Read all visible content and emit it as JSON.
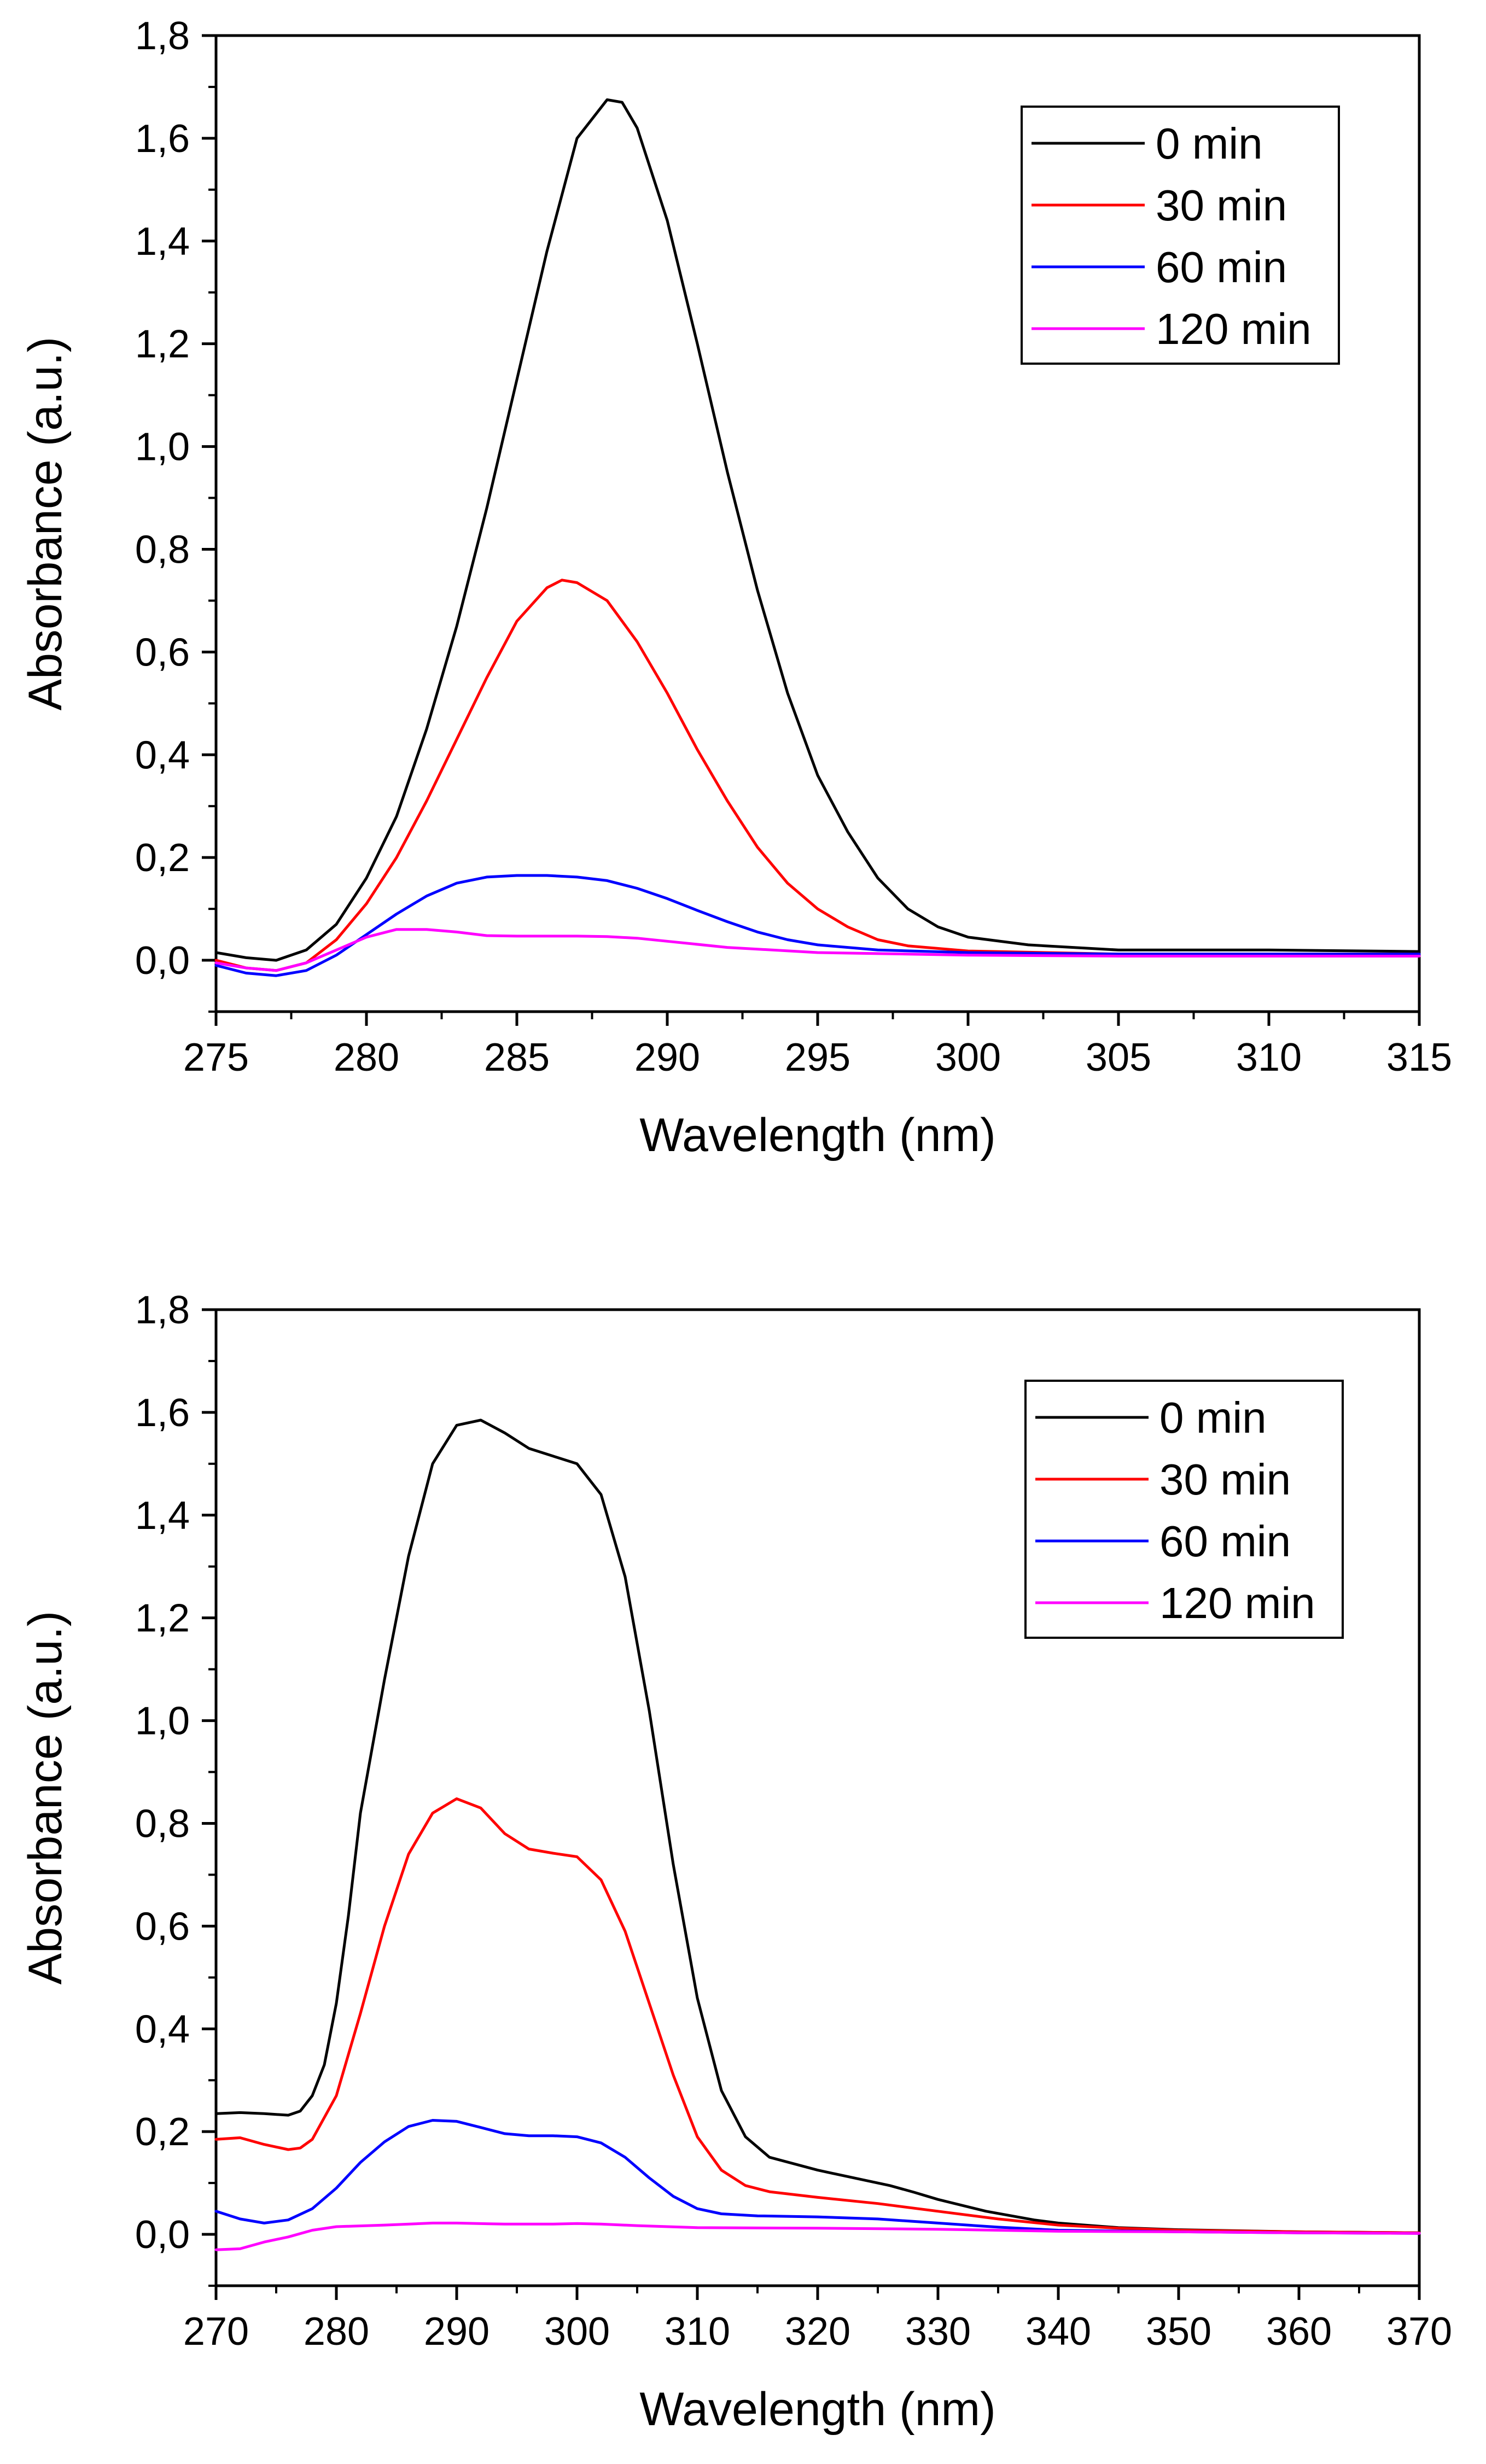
{
  "chart_data": [
    {
      "type": "line",
      "xlabel": "Wavelength (nm)",
      "ylabel": "Absorbance (a.u.)",
      "xlim": [
        275,
        315
      ],
      "ylim": [
        -0.1,
        1.8
      ],
      "grid": false,
      "legend_position": "top-right",
      "x_ticks": [
        275,
        280,
        285,
        290,
        295,
        300,
        305,
        310,
        315
      ],
      "x_tick_labels": [
        "275",
        "280",
        "285",
        "290",
        "295",
        "300",
        "305",
        "310",
        "315"
      ],
      "y_ticks": [
        0.0,
        0.2,
        0.4,
        0.6,
        0.8,
        1.0,
        1.2,
        1.4,
        1.6,
        1.8
      ],
      "y_tick_labels": [
        "0,0",
        "0,2",
        "0,4",
        "0,6",
        "0,8",
        "1,0",
        "1,2",
        "1,4",
        "1,6",
        "1,8"
      ],
      "series": [
        {
          "name": "0 min",
          "color": "#000000",
          "points": [
            [
              275,
              0.015
            ],
            [
              276,
              0.005
            ],
            [
              277,
              0.0
            ],
            [
              278,
              0.02
            ],
            [
              279,
              0.07
            ],
            [
              280,
              0.16
            ],
            [
              281,
              0.28
            ],
            [
              282,
              0.45
            ],
            [
              283,
              0.65
            ],
            [
              284,
              0.88
            ],
            [
              285,
              1.13
            ],
            [
              286,
              1.38
            ],
            [
              287,
              1.6
            ],
            [
              288,
              1.675
            ],
            [
              288.5,
              1.67
            ],
            [
              289,
              1.62
            ],
            [
              290,
              1.44
            ],
            [
              291,
              1.2
            ],
            [
              292,
              0.95
            ],
            [
              293,
              0.72
            ],
            [
              294,
              0.52
            ],
            [
              295,
              0.36
            ],
            [
              296,
              0.25
            ],
            [
              297,
              0.16
            ],
            [
              298,
              0.1
            ],
            [
              299,
              0.065
            ],
            [
              300,
              0.045
            ],
            [
              302,
              0.03
            ],
            [
              305,
              0.02
            ],
            [
              310,
              0.02
            ],
            [
              315,
              0.017
            ]
          ]
        },
        {
          "name": "30 min",
          "color": "#ff0000",
          "points": [
            [
              275,
              0.0
            ],
            [
              276,
              -0.015
            ],
            [
              277,
              -0.02
            ],
            [
              278,
              -0.005
            ],
            [
              279,
              0.04
            ],
            [
              280,
              0.11
            ],
            [
              281,
              0.2
            ],
            [
              282,
              0.31
            ],
            [
              283,
              0.43
            ],
            [
              284,
              0.55
            ],
            [
              285,
              0.66
            ],
            [
              286,
              0.725
            ],
            [
              286.5,
              0.74
            ],
            [
              287,
              0.735
            ],
            [
              288,
              0.7
            ],
            [
              289,
              0.62
            ],
            [
              290,
              0.52
            ],
            [
              291,
              0.41
            ],
            [
              292,
              0.31
            ],
            [
              293,
              0.22
            ],
            [
              294,
              0.15
            ],
            [
              295,
              0.1
            ],
            [
              296,
              0.065
            ],
            [
              297,
              0.04
            ],
            [
              298,
              0.028
            ],
            [
              300,
              0.018
            ],
            [
              305,
              0.012
            ],
            [
              310,
              0.012
            ],
            [
              315,
              0.012
            ]
          ]
        },
        {
          "name": "60 min",
          "color": "#0000ff",
          "points": [
            [
              275,
              -0.01
            ],
            [
              276,
              -0.025
            ],
            [
              277,
              -0.03
            ],
            [
              278,
              -0.02
            ],
            [
              279,
              0.01
            ],
            [
              280,
              0.05
            ],
            [
              281,
              0.09
            ],
            [
              282,
              0.125
            ],
            [
              283,
              0.15
            ],
            [
              284,
              0.162
            ],
            [
              285,
              0.165
            ],
            [
              286,
              0.165
            ],
            [
              287,
              0.162
            ],
            [
              288,
              0.155
            ],
            [
              289,
              0.14
            ],
            [
              290,
              0.12
            ],
            [
              291,
              0.097
            ],
            [
              292,
              0.075
            ],
            [
              293,
              0.055
            ],
            [
              294,
              0.04
            ],
            [
              295,
              0.03
            ],
            [
              297,
              0.02
            ],
            [
              300,
              0.015
            ],
            [
              305,
              0.012
            ],
            [
              310,
              0.012
            ],
            [
              315,
              0.012
            ]
          ]
        },
        {
          "name": "120 min",
          "color": "#ff00ff",
          "points": [
            [
              275,
              -0.005
            ],
            [
              276,
              -0.015
            ],
            [
              277,
              -0.02
            ],
            [
              278,
              -0.005
            ],
            [
              279,
              0.02
            ],
            [
              280,
              0.045
            ],
            [
              281,
              0.06
            ],
            [
              282,
              0.06
            ],
            [
              283,
              0.055
            ],
            [
              284,
              0.048
            ],
            [
              285,
              0.047
            ],
            [
              286,
              0.047
            ],
            [
              287,
              0.047
            ],
            [
              288,
              0.046
            ],
            [
              289,
              0.043
            ],
            [
              290,
              0.037
            ],
            [
              292,
              0.025
            ],
            [
              295,
              0.015
            ],
            [
              300,
              0.01
            ],
            [
              305,
              0.008
            ],
            [
              310,
              0.008
            ],
            [
              315,
              0.008
            ]
          ]
        }
      ]
    },
    {
      "type": "line",
      "xlabel": "Wavelength (nm)",
      "ylabel": "Absorbance (a.u.)",
      "xlim": [
        270,
        370
      ],
      "ylim": [
        -0.1,
        1.8
      ],
      "grid": false,
      "legend_position": "top-right",
      "x_ticks": [
        270,
        280,
        290,
        300,
        310,
        320,
        330,
        340,
        350,
        360,
        370
      ],
      "x_tick_labels": [
        "270",
        "280",
        "290",
        "300",
        "310",
        "320",
        "330",
        "340",
        "350",
        "360",
        "370"
      ],
      "y_ticks": [
        0.0,
        0.2,
        0.4,
        0.6,
        0.8,
        1.0,
        1.2,
        1.4,
        1.6,
        1.8
      ],
      "y_tick_labels": [
        "0,0",
        "0,2",
        "0,4",
        "0,6",
        "0,8",
        "1,0",
        "1,2",
        "1,4",
        "1,6",
        "1,8"
      ],
      "series": [
        {
          "name": "0 min",
          "color": "#000000",
          "points": [
            [
              270,
              0.235
            ],
            [
              272,
              0.237
            ],
            [
              274,
              0.235
            ],
            [
              276,
              0.232
            ],
            [
              277,
              0.24
            ],
            [
              278,
              0.27
            ],
            [
              279,
              0.33
            ],
            [
              280,
              0.45
            ],
            [
              281,
              0.62
            ],
            [
              282,
              0.82
            ],
            [
              284,
              1.08
            ],
            [
              286,
              1.32
            ],
            [
              288,
              1.5
            ],
            [
              290,
              1.575
            ],
            [
              292,
              1.585
            ],
            [
              294,
              1.56
            ],
            [
              296,
              1.53
            ],
            [
              298,
              1.515
            ],
            [
              300,
              1.5
            ],
            [
              302,
              1.44
            ],
            [
              304,
              1.28
            ],
            [
              306,
              1.02
            ],
            [
              308,
              0.72
            ],
            [
              310,
              0.46
            ],
            [
              312,
              0.28
            ],
            [
              314,
              0.19
            ],
            [
              316,
              0.15
            ],
            [
              320,
              0.125
            ],
            [
              324,
              0.105
            ],
            [
              326,
              0.095
            ],
            [
              328,
              0.082
            ],
            [
              330,
              0.068
            ],
            [
              334,
              0.045
            ],
            [
              338,
              0.028
            ],
            [
              340,
              0.022
            ],
            [
              345,
              0.013
            ],
            [
              350,
              0.009
            ],
            [
              355,
              0.007
            ],
            [
              360,
              0.005
            ],
            [
              365,
              0.004
            ],
            [
              370,
              0.003
            ]
          ]
        },
        {
          "name": "30 min",
          "color": "#ff0000",
          "points": [
            [
              270,
              0.185
            ],
            [
              272,
              0.188
            ],
            [
              274,
              0.175
            ],
            [
              276,
              0.165
            ],
            [
              277,
              0.168
            ],
            [
              278,
              0.185
            ],
            [
              280,
              0.27
            ],
            [
              282,
              0.43
            ],
            [
              284,
              0.6
            ],
            [
              286,
              0.74
            ],
            [
              288,
              0.82
            ],
            [
              290,
              0.848
            ],
            [
              292,
              0.83
            ],
            [
              294,
              0.78
            ],
            [
              296,
              0.75
            ],
            [
              298,
              0.742
            ],
            [
              300,
              0.735
            ],
            [
              302,
              0.69
            ],
            [
              304,
              0.59
            ],
            [
              306,
              0.45
            ],
            [
              308,
              0.31
            ],
            [
              310,
              0.19
            ],
            [
              312,
              0.125
            ],
            [
              314,
              0.095
            ],
            [
              316,
              0.083
            ],
            [
              320,
              0.072
            ],
            [
              325,
              0.06
            ],
            [
              330,
              0.045
            ],
            [
              335,
              0.03
            ],
            [
              340,
              0.018
            ],
            [
              345,
              0.012
            ],
            [
              350,
              0.008
            ],
            [
              360,
              0.005
            ],
            [
              370,
              0.003
            ]
          ]
        },
        {
          "name": "60 min",
          "color": "#0000ff",
          "points": [
            [
              270,
              0.045
            ],
            [
              272,
              0.03
            ],
            [
              274,
              0.022
            ],
            [
              276,
              0.028
            ],
            [
              278,
              0.05
            ],
            [
              280,
              0.09
            ],
            [
              282,
              0.14
            ],
            [
              284,
              0.18
            ],
            [
              286,
              0.21
            ],
            [
              288,
              0.222
            ],
            [
              290,
              0.22
            ],
            [
              292,
              0.208
            ],
            [
              294,
              0.196
            ],
            [
              296,
              0.192
            ],
            [
              298,
              0.192
            ],
            [
              300,
              0.19
            ],
            [
              302,
              0.178
            ],
            [
              304,
              0.15
            ],
            [
              306,
              0.11
            ],
            [
              308,
              0.074
            ],
            [
              310,
              0.05
            ],
            [
              312,
              0.04
            ],
            [
              315,
              0.036
            ],
            [
              320,
              0.034
            ],
            [
              325,
              0.03
            ],
            [
              330,
              0.022
            ],
            [
              335,
              0.014
            ],
            [
              340,
              0.008
            ],
            [
              350,
              0.005
            ],
            [
              360,
              0.003
            ],
            [
              370,
              0.002
            ]
          ]
        },
        {
          "name": "120 min",
          "color": "#ff00ff",
          "points": [
            [
              270,
              -0.03
            ],
            [
              272,
              -0.028
            ],
            [
              274,
              -0.015
            ],
            [
              276,
              -0.005
            ],
            [
              278,
              0.008
            ],
            [
              280,
              0.015
            ],
            [
              284,
              0.018
            ],
            [
              288,
              0.022
            ],
            [
              290,
              0.022
            ],
            [
              294,
              0.02
            ],
            [
              298,
              0.02
            ],
            [
              300,
              0.021
            ],
            [
              302,
              0.02
            ],
            [
              305,
              0.017
            ],
            [
              310,
              0.013
            ],
            [
              320,
              0.012
            ],
            [
              330,
              0.01
            ],
            [
              340,
              0.006
            ],
            [
              350,
              0.005
            ],
            [
              360,
              0.003
            ],
            [
              370,
              0.002
            ]
          ]
        }
      ]
    }
  ]
}
